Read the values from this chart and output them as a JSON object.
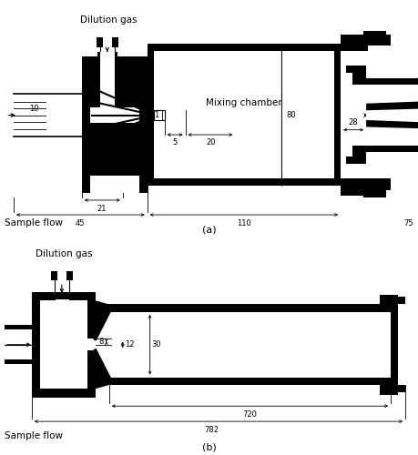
{
  "fig_width": 4.59,
  "fig_height": 5.0,
  "dpi": 100,
  "bg_color": "#ffffff",
  "line_color": "#000000",
  "thick_lw": 2.5,
  "thin_lw": 0.8,
  "dim_lw": 0.6,
  "caption_a": "(a)",
  "caption_b": "(b)",
  "label_a_title": "Mixing chamber",
  "label_dil_gas": "Dilution gas",
  "label_sample": "Sample flow",
  "fontsize_label": 7.5,
  "fontsize_dim": 6.0,
  "fontsize_caption": 8
}
